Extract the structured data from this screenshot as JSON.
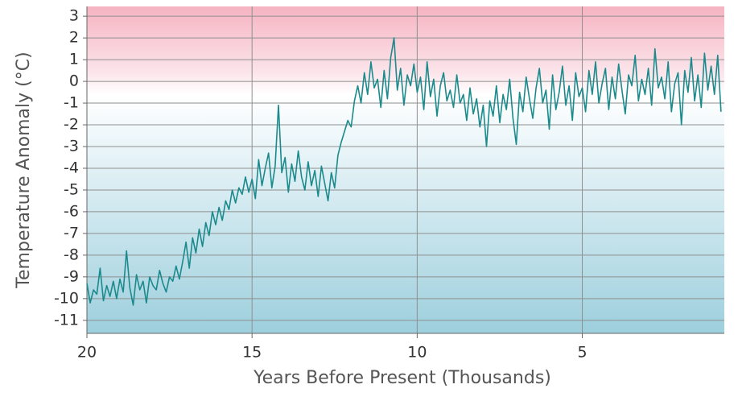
{
  "chart_data": {
    "type": "line",
    "x_label": "Years Before Present (Thousands)",
    "y_label": "Temperature Anomaly (°C)",
    "x": [
      20.0,
      19.9,
      19.8,
      19.7,
      19.6,
      19.5,
      19.4,
      19.3,
      19.2,
      19.1,
      19.0,
      18.9,
      18.8,
      18.7,
      18.6,
      18.5,
      18.4,
      18.3,
      18.2,
      18.1,
      18.0,
      17.9,
      17.8,
      17.7,
      17.6,
      17.5,
      17.4,
      17.3,
      17.2,
      17.1,
      17.0,
      16.9,
      16.8,
      16.7,
      16.6,
      16.5,
      16.4,
      16.3,
      16.2,
      16.1,
      16.0,
      15.9,
      15.8,
      15.7,
      15.6,
      15.5,
      15.4,
      15.3,
      15.2,
      15.1,
      15.0,
      14.9,
      14.8,
      14.7,
      14.6,
      14.5,
      14.4,
      14.3,
      14.2,
      14.1,
      14.0,
      13.9,
      13.8,
      13.7,
      13.6,
      13.5,
      13.4,
      13.3,
      13.2,
      13.1,
      13.0,
      12.9,
      12.8,
      12.7,
      12.6,
      12.5,
      12.4,
      12.3,
      12.2,
      12.1,
      12.0,
      11.9,
      11.8,
      11.7,
      11.6,
      11.5,
      11.4,
      11.3,
      11.2,
      11.1,
      11.0,
      10.9,
      10.8,
      10.7,
      10.6,
      10.5,
      10.4,
      10.3,
      10.2,
      10.1,
      10.0,
      9.9,
      9.8,
      9.7,
      9.6,
      9.5,
      9.4,
      9.3,
      9.2,
      9.1,
      9.0,
      8.9,
      8.8,
      8.7,
      8.6,
      8.5,
      8.4,
      8.3,
      8.2,
      8.1,
      8.0,
      7.9,
      7.8,
      7.7,
      7.6,
      7.5,
      7.4,
      7.3,
      7.2,
      7.1,
      7.0,
      6.9,
      6.8,
      6.7,
      6.6,
      6.5,
      6.4,
      6.3,
      6.2,
      6.1,
      6.0,
      5.9,
      5.8,
      5.7,
      5.6,
      5.5,
      5.4,
      5.3,
      5.2,
      5.1,
      5.0,
      4.9,
      4.8,
      4.7,
      4.6,
      4.5,
      4.4,
      4.3,
      4.2,
      4.1,
      4.0,
      3.9,
      3.8,
      3.7,
      3.6,
      3.5,
      3.4,
      3.3,
      3.2,
      3.1,
      3.0,
      2.9,
      2.8,
      2.7,
      2.6,
      2.5,
      2.4,
      2.3,
      2.2,
      2.1,
      2.0,
      1.9,
      1.8,
      1.7,
      1.6,
      1.5,
      1.4,
      1.3,
      1.2,
      1.1,
      1.0,
      0.9,
      0.8
    ],
    "values": [
      -9.3,
      -10.2,
      -9.6,
      -9.8,
      -8.6,
      -10.1,
      -9.4,
      -9.9,
      -9.2,
      -10.0,
      -9.1,
      -9.7,
      -7.8,
      -9.5,
      -10.3,
      -8.9,
      -9.6,
      -9.2,
      -10.2,
      -9.0,
      -9.4,
      -9.6,
      -8.7,
      -9.3,
      -9.7,
      -9.0,
      -9.2,
      -8.5,
      -9.1,
      -8.3,
      -7.4,
      -8.6,
      -7.2,
      -7.9,
      -6.8,
      -7.6,
      -6.5,
      -7.1,
      -6.0,
      -6.6,
      -5.8,
      -6.4,
      -5.5,
      -5.9,
      -5.0,
      -5.6,
      -4.9,
      -5.2,
      -4.4,
      -5.1,
      -4.5,
      -5.4,
      -3.6,
      -4.8,
      -4.0,
      -3.3,
      -4.9,
      -3.9,
      -1.1,
      -4.2,
      -3.5,
      -5.1,
      -3.8,
      -4.6,
      -3.2,
      -4.4,
      -5.0,
      -3.7,
      -4.8,
      -4.1,
      -5.3,
      -3.9,
      -4.7,
      -5.5,
      -4.2,
      -4.9,
      -3.4,
      -2.8,
      -2.3,
      -1.8,
      -2.1,
      -0.9,
      -0.2,
      -1.0,
      0.4,
      -0.6,
      0.9,
      -0.3,
      0.1,
      -1.2,
      0.5,
      -0.8,
      1.1,
      2.0,
      -0.4,
      0.6,
      -1.1,
      0.3,
      -0.2,
      0.8,
      -0.5,
      0.2,
      -1.3,
      0.9,
      -0.7,
      0.1,
      -1.6,
      -0.2,
      0.4,
      -0.9,
      -0.4,
      -1.2,
      0.3,
      -1.0,
      -0.6,
      -1.8,
      -0.3,
      -1.5,
      -0.8,
      -2.1,
      -1.1,
      -3.0,
      -0.9,
      -1.6,
      -0.2,
      -1.9,
      -0.6,
      -1.3,
      0.1,
      -1.7,
      -2.9,
      -0.5,
      -1.4,
      0.2,
      -0.8,
      -1.7,
      -0.3,
      0.6,
      -1.0,
      -0.4,
      -2.2,
      0.3,
      -1.3,
      -0.5,
      0.7,
      -1.1,
      -0.2,
      -1.8,
      0.4,
      -0.7,
      -0.3,
      -1.4,
      0.5,
      -0.6,
      0.9,
      -1.0,
      -0.1,
      0.6,
      -1.3,
      0.2,
      -0.8,
      0.8,
      -0.4,
      -1.5,
      0.3,
      -0.2,
      1.2,
      -0.9,
      0.1,
      -0.6,
      0.6,
      -1.1,
      1.5,
      -0.3,
      0.2,
      -0.8,
      0.9,
      -1.4,
      -0.1,
      0.4,
      -2.0,
      0.5,
      -0.5,
      1.1,
      -0.9,
      0.3,
      -1.2,
      1.3,
      -0.4,
      0.7,
      -0.6,
      1.2,
      -1.4
    ],
    "color": "#1b8a8c",
    "xlim": [
      20,
      0.7
    ],
    "xticks": [
      20,
      15,
      10,
      5
    ],
    "ylim": [
      -11.6,
      3.45
    ],
    "yticks": [
      3,
      2,
      1,
      0,
      -1,
      -2,
      -3,
      -4,
      -5,
      -6,
      -7,
      -8,
      -9,
      -10,
      -11
    ],
    "grid": true
  }
}
